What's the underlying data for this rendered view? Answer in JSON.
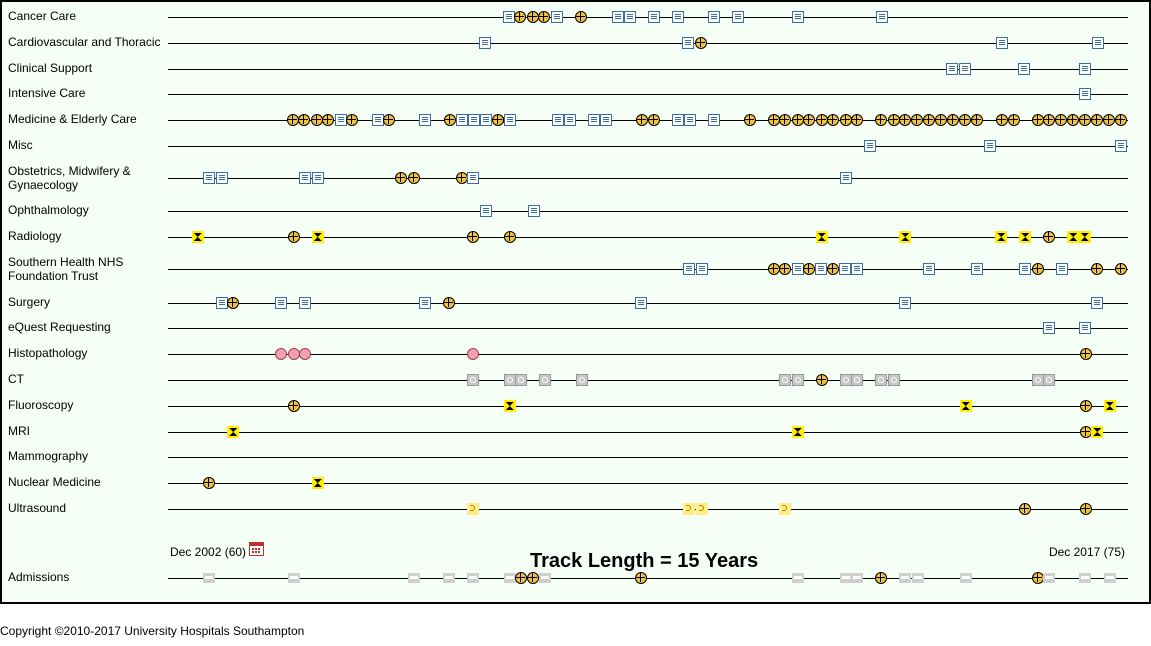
{
  "timeline": {
    "start_date": "Dec 2002",
    "start_count": "(60)",
    "start_label": "Dec 2002 (60)",
    "end_date": "Dec 2017",
    "end_count": "(75)",
    "end_label": "Dec 2017 (75)",
    "track_length_label": "Track Length = 15 Years"
  },
  "tracks": [
    {
      "label": "Cancer Care",
      "events": [
        [
          "doc",
          0.355
        ],
        [
          "cross",
          0.367
        ],
        [
          "cross",
          0.38
        ],
        [
          "cross",
          0.392
        ],
        [
          "doc",
          0.405
        ],
        [
          "cross",
          0.43
        ],
        [
          "doc",
          0.469
        ],
        [
          "doc",
          0.481
        ],
        [
          "doc",
          0.506
        ],
        [
          "doc",
          0.531
        ],
        [
          "doc",
          0.569
        ],
        [
          "doc",
          0.594
        ],
        [
          "doc",
          0.656
        ],
        [
          "doc",
          0.744
        ]
      ]
    },
    {
      "label": "Cardiovascular and Thoracic",
      "events": [
        [
          "doc",
          0.33
        ],
        [
          "doc",
          0.542
        ],
        [
          "cross",
          0.555
        ],
        [
          "doc",
          0.869
        ],
        [
          "doc",
          0.969
        ]
      ]
    },
    {
      "label": "Clinical Support",
      "events": [
        [
          "doc",
          0.817
        ],
        [
          "doc",
          0.83
        ],
        [
          "doc",
          0.892
        ],
        [
          "doc",
          0.955
        ]
      ]
    },
    {
      "label": "Intensive Care",
      "events": [
        [
          "doc",
          0.955
        ]
      ]
    },
    {
      "label": "Medicine & Elderly Care",
      "events": [
        [
          "cross",
          0.13
        ],
        [
          "cross",
          0.142
        ],
        [
          "cross",
          0.155
        ],
        [
          "cross",
          0.167
        ],
        [
          "doc",
          0.18
        ],
        [
          "cross",
          0.192
        ],
        [
          "doc",
          0.219
        ],
        [
          "cross",
          0.23
        ],
        [
          "doc",
          0.268
        ],
        [
          "cross",
          0.294
        ],
        [
          "doc",
          0.306
        ],
        [
          "doc",
          0.319
        ],
        [
          "doc",
          0.331
        ],
        [
          "cross",
          0.344
        ],
        [
          "cross",
          0.355
        ],
        [
          "doc",
          0.356
        ],
        [
          "doc",
          0.406
        ],
        [
          "doc",
          0.419
        ],
        [
          "doc",
          0.444
        ],
        [
          "doc",
          0.456
        ],
        [
          "cross",
          0.494
        ],
        [
          "cross",
          0.506
        ],
        [
          "doc",
          0.531
        ],
        [
          "doc",
          0.544
        ],
        [
          "doc",
          0.569
        ],
        [
          "cross",
          0.606
        ],
        [
          "cross",
          0.631
        ],
        [
          "cross",
          0.643
        ],
        [
          "cross",
          0.656
        ],
        [
          "cross",
          0.668
        ],
        [
          "cross",
          0.681
        ],
        [
          "cross",
          0.693
        ],
        [
          "cross",
          0.706
        ],
        [
          "cross",
          0.718
        ],
        [
          "cross",
          0.743
        ],
        [
          "cross",
          0.756
        ],
        [
          "cross",
          0.768
        ],
        [
          "cross",
          0.78
        ],
        [
          "cross",
          0.793
        ],
        [
          "cross",
          0.805
        ],
        [
          "cross",
          0.818
        ],
        [
          "cross",
          0.83
        ],
        [
          "cross",
          0.843
        ],
        [
          "cross",
          0.869
        ],
        [
          "cross",
          0.881
        ],
        [
          "cross",
          0.906
        ],
        [
          "cross",
          0.918
        ],
        [
          "cross",
          0.93
        ],
        [
          "cross",
          0.943
        ],
        [
          "cross",
          0.955
        ],
        [
          "cross",
          0.968
        ],
        [
          "cross",
          0.98
        ],
        [
          "cross",
          0.993
        ]
      ]
    },
    {
      "label": "Misc",
      "events": [
        [
          "doc",
          0.731
        ],
        [
          "doc",
          0.856
        ],
        [
          "doc",
          0.993
        ]
      ]
    },
    {
      "label": "Obstetrics, Midwifery & Gynaecology",
      "events": [
        [
          "doc",
          0.043
        ],
        [
          "doc",
          0.056
        ],
        [
          "doc",
          0.143
        ],
        [
          "doc",
          0.156
        ],
        [
          "cross",
          0.243
        ],
        [
          "cross",
          0.256
        ],
        [
          "cross",
          0.306
        ],
        [
          "doc",
          0.318
        ],
        [
          "doc",
          0.706
        ]
      ]
    },
    {
      "label": "Ophthalmology",
      "events": [
        [
          "doc",
          0.331
        ],
        [
          "doc",
          0.381
        ]
      ]
    },
    {
      "label": "Radiology",
      "events": [
        [
          "xray",
          0.031
        ],
        [
          "cross",
          0.131
        ],
        [
          "xray",
          0.156
        ],
        [
          "cross",
          0.318
        ],
        [
          "cross",
          0.356
        ],
        [
          "xray",
          0.681
        ],
        [
          "xray",
          0.768
        ],
        [
          "xray",
          0.868
        ],
        [
          "xray",
          0.893
        ],
        [
          "cross",
          0.918
        ],
        [
          "xray",
          0.943
        ],
        [
          "xray",
          0.955
        ]
      ]
    },
    {
      "label": "Southern Health NHS Foundation Trust",
      "events": [
        [
          "doc",
          0.543
        ],
        [
          "doc",
          0.556
        ],
        [
          "cross",
          0.631
        ],
        [
          "cross",
          0.643
        ],
        [
          "doc",
          0.656
        ],
        [
          "cross",
          0.668
        ],
        [
          "doc",
          0.68
        ],
        [
          "cross",
          0.693
        ],
        [
          "doc",
          0.705
        ],
        [
          "doc",
          0.718
        ],
        [
          "doc",
          0.793
        ],
        [
          "doc",
          0.843
        ],
        [
          "doc",
          0.893
        ],
        [
          "cross",
          0.906
        ],
        [
          "doc",
          0.931
        ],
        [
          "cross",
          0.968
        ],
        [
          "cross",
          0.993
        ]
      ]
    },
    {
      "label": "Surgery",
      "events": [
        [
          "doc",
          0.056
        ],
        [
          "cross",
          0.068
        ],
        [
          "doc",
          0.118
        ],
        [
          "doc",
          0.143
        ],
        [
          "doc",
          0.268
        ],
        [
          "cross",
          0.293
        ],
        [
          "doc",
          0.493
        ],
        [
          "doc",
          0.768
        ],
        [
          "doc",
          0.968
        ]
      ]
    },
    {
      "label": "eQuest Requesting",
      "events": [
        [
          "doc",
          0.918
        ],
        [
          "doc",
          0.955
        ]
      ]
    },
    {
      "label": "Histopathology",
      "events": [
        [
          "histo",
          0.118
        ],
        [
          "histo",
          0.131
        ],
        [
          "histo",
          0.143
        ],
        [
          "histo",
          0.318
        ],
        [
          "cross",
          0.956
        ]
      ]
    },
    {
      "label": "CT",
      "events": [
        [
          "ct",
          0.318
        ],
        [
          "ct",
          0.356
        ],
        [
          "ct",
          0.368
        ],
        [
          "ct",
          0.393
        ],
        [
          "ct",
          0.431
        ],
        [
          "ct",
          0.643
        ],
        [
          "ct",
          0.656
        ],
        [
          "cross",
          0.681
        ],
        [
          "ct",
          0.706
        ],
        [
          "ct",
          0.718
        ],
        [
          "ct",
          0.743
        ],
        [
          "ct",
          0.756
        ],
        [
          "ct",
          0.906
        ],
        [
          "ct",
          0.918
        ]
      ]
    },
    {
      "label": "Fluoroscopy",
      "events": [
        [
          "cross",
          0.131
        ],
        [
          "xray",
          0.356
        ],
        [
          "xray",
          0.831
        ],
        [
          "cross",
          0.956
        ],
        [
          "xray",
          0.981
        ]
      ]
    },
    {
      "label": "MRI",
      "events": [
        [
          "xray",
          0.068
        ],
        [
          "xray",
          0.656
        ],
        [
          "cross",
          0.956
        ],
        [
          "xray",
          0.968
        ]
      ]
    },
    {
      "label": "Mammography",
      "events": []
    },
    {
      "label": "Nuclear Medicine",
      "events": [
        [
          "cross",
          0.043
        ],
        [
          "xray",
          0.156
        ]
      ]
    },
    {
      "label": "Ultrasound",
      "events": [
        [
          "us",
          0.318
        ],
        [
          "us",
          0.543
        ],
        [
          "us",
          0.556
        ],
        [
          "us",
          0.643
        ],
        [
          "cross",
          0.893
        ],
        [
          "cross",
          0.956
        ]
      ]
    }
  ],
  "admissions": {
    "label": "Admissions",
    "events": [
      [
        "bed",
        0.043
      ],
      [
        "bed",
        0.131
      ],
      [
        "bed",
        0.256
      ],
      [
        "bed",
        0.293
      ],
      [
        "bed",
        0.318
      ],
      [
        "bed",
        0.356
      ],
      [
        "cross",
        0.368
      ],
      [
        "cross",
        0.38
      ],
      [
        "bed",
        0.393
      ],
      [
        "cross",
        0.493
      ],
      [
        "bed",
        0.656
      ],
      [
        "bed",
        0.706
      ],
      [
        "bed",
        0.718
      ],
      [
        "cross",
        0.743
      ],
      [
        "bed",
        0.768
      ],
      [
        "bed",
        0.781
      ],
      [
        "bed",
        0.831
      ],
      [
        "cross",
        0.906
      ],
      [
        "bed",
        0.918
      ],
      [
        "bed",
        0.955
      ],
      [
        "bed",
        0.981
      ]
    ]
  },
  "footer": {
    "copyright": "Copyright ©2010-2017 University Hospitals Southampton"
  }
}
